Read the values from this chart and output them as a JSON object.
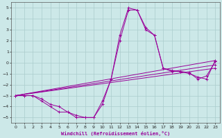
{
  "xlabel": "Windchill (Refroidissement éolien,°C)",
  "background_color": "#cce8e8",
  "line_color": "#990099",
  "grid_color": "#aacccc",
  "xlim": [
    -0.5,
    23.5
  ],
  "ylim": [
    -5.5,
    5.5
  ],
  "xticks": [
    0,
    1,
    2,
    3,
    4,
    5,
    6,
    7,
    8,
    9,
    10,
    11,
    12,
    13,
    14,
    15,
    16,
    17,
    18,
    19,
    20,
    21,
    22,
    23
  ],
  "yticks": [
    -5,
    -4,
    -3,
    -2,
    -1,
    0,
    1,
    2,
    3,
    4,
    5
  ],
  "lines": [
    {
      "x": [
        0,
        1,
        2,
        3,
        4,
        5,
        6,
        7,
        8,
        9,
        10,
        11,
        12,
        13,
        14,
        15,
        16,
        17,
        18,
        19,
        20,
        21,
        22,
        23
      ],
      "y": [
        -3,
        -3,
        -3,
        -3.5,
        -4,
        -4.5,
        -4.5,
        -5,
        -5,
        -5,
        -3.5,
        -1.5,
        2.5,
        5,
        4.8,
        3,
        2.5,
        -0.5,
        -0.8,
        -0.8,
        -1.0,
        -1.3,
        -1.5,
        0.2
      ]
    },
    {
      "x": [
        0,
        1,
        2,
        3,
        4,
        5,
        6,
        7,
        8,
        9,
        10,
        11,
        12,
        13,
        14,
        15,
        16,
        17,
        18,
        19,
        20,
        21,
        22,
        23
      ],
      "y": [
        -3,
        -3,
        -3,
        -3.3,
        -3.8,
        -4,
        -4.5,
        -4.8,
        -5,
        -5,
        -3.8,
        -1.5,
        2.0,
        4.8,
        4.8,
        3.2,
        2.5,
        -0.5,
        -0.7,
        -0.8,
        -0.9,
        -1.5,
        -1.2,
        0.1
      ]
    },
    {
      "x": [
        0,
        23
      ],
      "y": [
        -3,
        0.2
      ]
    },
    {
      "x": [
        0,
        23
      ],
      "y": [
        -3,
        -0.2
      ]
    },
    {
      "x": [
        0,
        23
      ],
      "y": [
        -3,
        -0.5
      ]
    }
  ]
}
